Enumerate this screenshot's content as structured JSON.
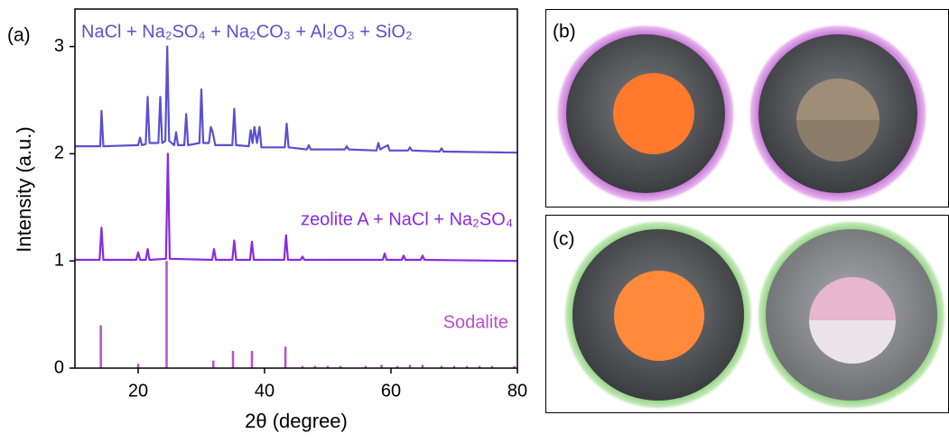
{
  "chart_data": {
    "type": "line",
    "panel_label": "(a)",
    "xlabel": "2θ (degree)",
    "ylabel": "Intensity (a.u.)",
    "xlim": [
      10,
      80
    ],
    "ylim": [
      0,
      3.35
    ],
    "xticks": [
      20,
      40,
      60,
      80
    ],
    "yticks": [
      0,
      1,
      2,
      3
    ],
    "series": [
      {
        "name": "NaCl + Na₂SO₄ + Na₂CO₃ + Al₂O₃ + SiO₂",
        "color": "#5b4fd0",
        "kind": "line",
        "x": [
          10,
          14.0,
          14.2,
          14.5,
          20.0,
          20.3,
          20.6,
          21.2,
          21.5,
          21.8,
          23.2,
          23.5,
          23.8,
          24.3,
          24.6,
          24.9,
          25.7,
          26.0,
          26.3,
          27.3,
          27.6,
          27.9,
          29.7,
          30.0,
          30.3,
          31.2,
          31.5,
          31.8,
          32.2,
          34.9,
          35.2,
          35.5,
          37.5,
          37.8,
          38.1,
          38.4,
          38.8,
          39.2,
          39.5,
          43.2,
          43.5,
          43.8,
          46.7,
          47.0,
          47.3,
          52.7,
          53.0,
          53.3,
          57.7,
          58.0,
          58.3,
          59.5,
          59.8,
          62.7,
          63.0,
          63.3,
          67.7,
          68.0,
          68.3,
          80
        ],
        "values": [
          2.07,
          2.07,
          2.4,
          2.07,
          2.08,
          2.15,
          2.08,
          2.09,
          2.53,
          2.1,
          2.1,
          2.53,
          2.1,
          2.12,
          3.0,
          2.12,
          2.08,
          2.2,
          2.08,
          2.08,
          2.37,
          2.08,
          2.1,
          2.6,
          2.1,
          2.1,
          2.25,
          2.2,
          2.08,
          2.08,
          2.42,
          2.08,
          2.07,
          2.22,
          2.1,
          2.25,
          2.1,
          2.25,
          2.06,
          2.06,
          2.28,
          2.06,
          2.04,
          2.08,
          2.04,
          2.04,
          2.07,
          2.04,
          2.03,
          2.1,
          2.04,
          2.08,
          2.03,
          2.03,
          2.06,
          2.03,
          2.02,
          2.05,
          2.02,
          2.01
        ]
      },
      {
        "name": "zeolite A + NaCl + Na₂SO₄",
        "color": "#8a2be2",
        "kind": "line",
        "x": [
          10,
          13.9,
          14.2,
          14.5,
          19.7,
          20.0,
          20.3,
          21.2,
          21.5,
          21.8,
          24.4,
          24.7,
          25.0,
          31.7,
          32.0,
          32.3,
          34.9,
          35.2,
          35.5,
          37.7,
          38.0,
          38.3,
          43.1,
          43.4,
          43.7,
          45.7,
          46.0,
          46.3,
          58.7,
          59.0,
          59.3,
          61.7,
          62.0,
          62.3,
          64.7,
          65.0,
          65.3,
          80
        ],
        "values": [
          1.01,
          1.01,
          1.31,
          1.01,
          1.01,
          1.08,
          1.01,
          1.01,
          1.11,
          1.01,
          1.02,
          2.0,
          1.02,
          1.01,
          1.11,
          1.01,
          1.01,
          1.19,
          1.01,
          1.01,
          1.18,
          1.01,
          1.01,
          1.24,
          1.01,
          1.01,
          1.04,
          1.01,
          1.01,
          1.07,
          1.01,
          1.01,
          1.05,
          1.01,
          1.01,
          1.05,
          1.01,
          1.0
        ]
      },
      {
        "name": "Sodalite",
        "color": "#b84fcc",
        "kind": "stick",
        "x": [
          14.1,
          20.0,
          24.5,
          31.9,
          35.0,
          38.0,
          43.3,
          46.0,
          48.0,
          50.0,
          52.0,
          56.0,
          58.5,
          61.0,
          63.0,
          65.0,
          68.0,
          70.0,
          72.0,
          74.0,
          76.0,
          79.5
        ],
        "values": [
          0.4,
          0.04,
          1.0,
          0.07,
          0.16,
          0.16,
          0.2,
          0.02,
          0.02,
          0.02,
          0.02,
          0.02,
          0.03,
          0.02,
          0.03,
          0.03,
          0.02,
          0.02,
          0.02,
          0.02,
          0.02,
          0.02
        ]
      }
    ]
  },
  "panels": [
    {
      "label": "(b)"
    },
    {
      "label": "(c)"
    }
  ]
}
